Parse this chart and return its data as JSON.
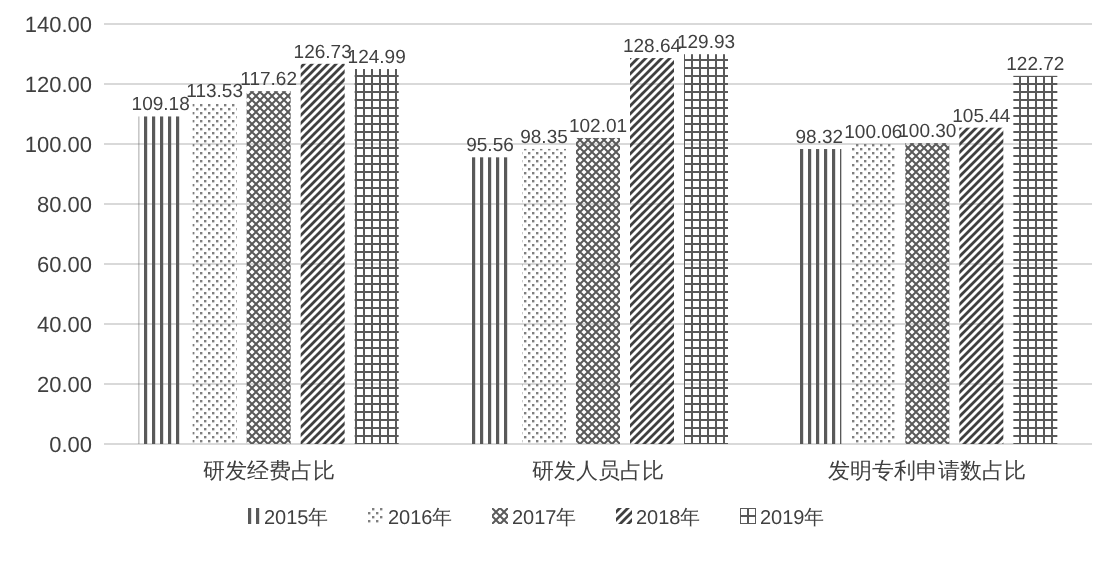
{
  "chart_data": {
    "type": "bar",
    "categories": [
      "研发经费占比",
      "研发人员占比",
      "发明专利申请数占比"
    ],
    "series": [
      {
        "name": "2015年",
        "color": "#595959",
        "values": [
          109.18,
          95.56,
          98.32
        ],
        "value_labels": [
          "109.18",
          "95.56",
          "98.32"
        ]
      },
      {
        "name": "2016年",
        "color": "#7f7f7f",
        "values": [
          113.53,
          98.35,
          100.06
        ],
        "value_labels": [
          "113.53",
          "98.35",
          "100.06"
        ]
      },
      {
        "name": "2017年",
        "color": "#595959",
        "values": [
          117.62,
          102.01,
          100.3
        ],
        "value_labels": [
          "117.62",
          "102.01",
          "100.30"
        ]
      },
      {
        "name": "2018年",
        "color": "#404040",
        "values": [
          126.73,
          128.64,
          105.44
        ],
        "value_labels": [
          "126.73",
          "128.64",
          "105.44"
        ]
      },
      {
        "name": "2019年",
        "color": "#595959",
        "values": [
          124.99,
          129.93,
          122.72
        ],
        "value_labels": [
          "124.99",
          "129.93",
          "122.72"
        ]
      }
    ],
    "ylim": [
      0,
      140
    ],
    "yticks": [
      {
        "value": 0,
        "label": "0.00"
      },
      {
        "value": 20,
        "label": "20.00"
      },
      {
        "value": 40,
        "label": "40.00"
      },
      {
        "value": 60,
        "label": "60.00"
      },
      {
        "value": 80,
        "label": "80.00"
      },
      {
        "value": 100,
        "label": "100.00"
      },
      {
        "value": 120,
        "label": "120.00"
      },
      {
        "value": 140,
        "label": "140.00"
      }
    ],
    "grid": "y",
    "legend": "bottom"
  }
}
